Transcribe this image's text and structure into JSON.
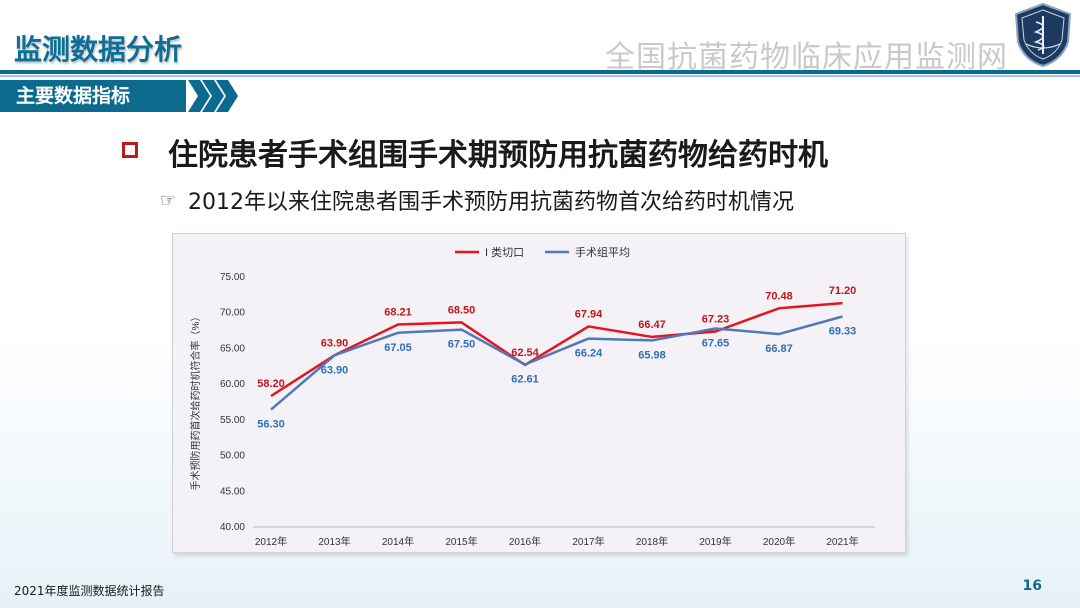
{
  "header": {
    "section_title": "监测数据分析",
    "network_title": "全国抗菌药物临床应用监测网",
    "tab_label": "主要数据指标"
  },
  "main": {
    "heading": "住院患者手术组围手术期预防用抗菌药物给药时机",
    "subheading": "2012年以来住院患者围手术预防用抗菌药物首次给药时机情况"
  },
  "footer": {
    "report_name": "2021年度监测数据统计报告",
    "page_number": "16"
  },
  "colors": {
    "accent": "#0d6a8f",
    "series_red": "#e3161e",
    "series_blue": "#5079b8",
    "label_blue": "#2e6fb5"
  },
  "chart_data": {
    "type": "line",
    "title": "",
    "ylabel": "手术预防用药首次给药时机符合率（%）",
    "xlabel": "",
    "ylim": [
      40,
      75
    ],
    "yticks": [
      "40.00",
      "45.00",
      "50.00",
      "55.00",
      "60.00",
      "65.00",
      "70.00",
      "75.00"
    ],
    "grid": false,
    "legend": "top-center",
    "categories": [
      "2012年",
      "2013年",
      "2014年",
      "2015年",
      "2016年",
      "2017年",
      "2018年",
      "2019年",
      "2020年",
      "2021年"
    ],
    "series": [
      {
        "name": "I 类切口",
        "color": "#e3161e",
        "label_color": "#c0161e",
        "values": [
          58.2,
          63.9,
          68.21,
          68.5,
          62.54,
          67.94,
          66.47,
          67.23,
          70.48,
          71.2
        ],
        "labels": [
          "58.20",
          "63.90",
          "68.21",
          "68.50",
          "62.54",
          "67.94",
          "66.47",
          "67.23",
          "70.48",
          "71.20"
        ]
      },
      {
        "name": "手术组平均",
        "color": "#5079b8",
        "label_color": "#2e6fb5",
        "values": [
          56.3,
          63.9,
          67.05,
          67.5,
          62.61,
          66.24,
          65.98,
          67.65,
          66.87,
          69.33
        ],
        "labels": [
          "56.30",
          "63.90",
          "67.05",
          "67.50",
          "62.61",
          "66.24",
          "65.98",
          "67.65",
          "66.87",
          "69.33"
        ]
      }
    ]
  }
}
